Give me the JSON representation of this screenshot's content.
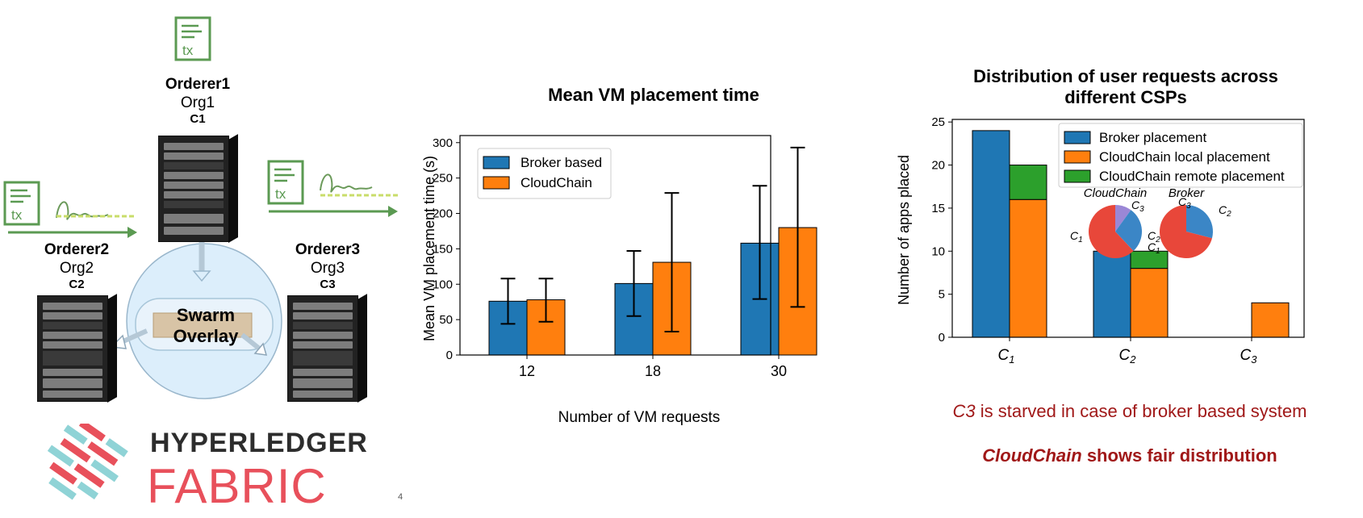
{
  "network": {
    "tx_label": "tx",
    "nodes": [
      {
        "name": "Orderer1",
        "org": "Org1",
        "channel": "C1"
      },
      {
        "name": "Orderer2",
        "org": "Org2",
        "channel": "C2"
      },
      {
        "name": "Orderer3",
        "org": "Org3",
        "channel": "C3"
      }
    ],
    "overlay_label": [
      "Swarm",
      "Overlay"
    ],
    "logo_top": "HYPERLEDGER",
    "logo_bottom": "FABRIC",
    "colors": {
      "tx_green": "#5b9a52",
      "overlay": "#dceefb",
      "logo_red": "#e8505b",
      "logo_teal": "#8fd3d6"
    }
  },
  "stray_mark": "4",
  "chart_data": [
    {
      "type": "bar",
      "title": "Mean VM placement time",
      "xlabel": "Number of VM requests",
      "ylabel": "Mean VM placement time (s)",
      "categories": [
        "12",
        "18",
        "30"
      ],
      "ylim": [
        0,
        310
      ],
      "yticks": [
        0,
        50,
        100,
        150,
        200,
        250,
        300
      ],
      "legend_position": "top-left",
      "series": [
        {
          "name": "Broker based",
          "color": "#1f77b4",
          "values": [
            76,
            101,
            158
          ],
          "err_low": [
            44,
            55,
            79
          ],
          "err_high": [
            108,
            147,
            239
          ]
        },
        {
          "name": "CloudChain",
          "color": "#ff7f0e",
          "values": [
            78,
            131,
            180
          ],
          "err_low": [
            47,
            33,
            68
          ],
          "err_high": [
            108,
            229,
            293
          ]
        }
      ]
    },
    {
      "type": "bar",
      "title": "Distribution of user requests across different CSPs",
      "title_lines": [
        "Distribution of user requests across",
        "different CSPs"
      ],
      "xlabel": "",
      "ylabel": "Number of apps placed",
      "categories": [
        "C1",
        "C2",
        "C3"
      ],
      "ylim": [
        0,
        25
      ],
      "yticks": [
        0,
        5,
        10,
        15,
        20,
        25
      ],
      "legend_position": "top-right",
      "series": [
        {
          "name": "Broker placement",
          "color": "#1f77b4",
          "values": [
            24,
            10,
            0
          ]
        },
        {
          "name": "CloudChain local placement",
          "color": "#ff7f0e",
          "values": [
            16,
            8,
            4
          ]
        },
        {
          "name": "CloudChain remote placement",
          "color": "#2ca02c",
          "values": [
            4,
            2,
            0
          ]
        }
      ],
      "insets": [
        {
          "type": "pie",
          "title": "CloudChain",
          "labels": [
            "C1",
            "C2",
            "C3"
          ],
          "values": [
            0.62,
            0.28,
            0.1
          ],
          "colors": [
            "#e8473a",
            "#3b86c6",
            "#9b87d6"
          ]
        },
        {
          "type": "pie",
          "title": "Broker",
          "labels": [
            "C1",
            "C2",
            "C3"
          ],
          "values": [
            0.71,
            0.29,
            0.0
          ],
          "colors": [
            "#e8473a",
            "#3b86c6",
            "#9b87d6"
          ]
        }
      ]
    }
  ],
  "captions": {
    "starved": {
      "em": "C3",
      "rest": " is starved in case of broker based system"
    },
    "fair": {
      "em": "CloudChain",
      "rest": " shows fair distribution"
    }
  }
}
